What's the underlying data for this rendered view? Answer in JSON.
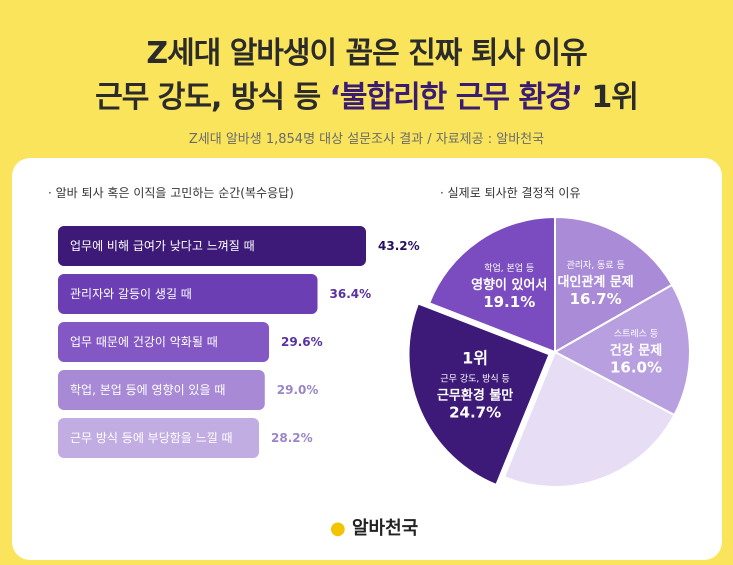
{
  "header": {
    "title_line1": "Z세대 알바생이 꼽은 진짜 퇴사 이유",
    "title_line2_prefix": "근무 강도, 방식 등 ",
    "title_line2_highlight": "‘불합리한 근무 환경’",
    "title_line2_suffix": " 1위",
    "subtitle": "Z세대 알바생 1,854명 대상 설문조사 결과 / 자료제공 : 알바천국"
  },
  "logo": {
    "text": "알바천국"
  },
  "chart_data": [
    {
      "type": "bar",
      "title": "· 알바 퇴사 혹은 이직을 고민하는 순간(복수응답)",
      "categories": [
        "업무에 비해 급여가 낮다고 느껴질 때",
        "관리자와 갈등이 생길 때",
        "업무 때문에 건강이 악화될 때",
        "학업, 본업 등에 영향이 있을 때",
        "근무 방식 등에 부당함을 느낄 때"
      ],
      "values": [
        43.2,
        36.4,
        29.6,
        29.0,
        28.2
      ],
      "value_labels": [
        "43.2%",
        "36.4%",
        "29.6%",
        "29.0%",
        "28.2%"
      ],
      "colors": [
        "#3D1A78",
        "#6B3FB3",
        "#8458C4",
        "#A889D6",
        "#C2ADE3"
      ]
    },
    {
      "type": "pie",
      "title": "· 실제로 퇴사한 결정적 이유",
      "slices": [
        {
          "label_small": "관리자, 동료 등",
          "label": "대인관계 문제",
          "value": 16.7,
          "value_label": "16.7%",
          "color": "#A98BD8"
        },
        {
          "label_small": "스트레스 등",
          "label": "건강 문제",
          "value": 16.0,
          "value_label": "16.0%",
          "color": "#B8A0E0"
        },
        {
          "label_small": "",
          "label": "",
          "value": 23.4,
          "value_label": "",
          "color": "#E7DDF5"
        },
        {
          "label_small": "근무 강도, 방식 등",
          "label": "근무환경 불만",
          "rank": "1위",
          "value": 24.7,
          "value_label": "24.7%",
          "color": "#3D1A78"
        },
        {
          "label_small": "학업, 본업 등",
          "label": "영향이 있어서",
          "value": 19.1,
          "value_label": "19.1%",
          "color": "#7A4CC0"
        }
      ]
    }
  ]
}
